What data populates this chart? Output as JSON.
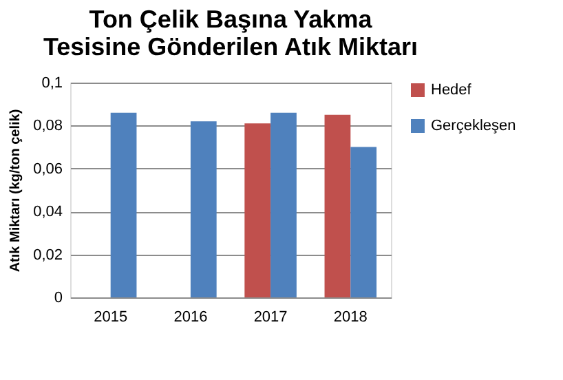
{
  "chart_data": {
    "type": "bar",
    "title": "Ton Çelik Başına Yakma Tesisine Gönderilen Atık Miktarı",
    "ylabel": "Atık Miktarı (kg/ton çelik)",
    "categories": [
      "2015",
      "2016",
      "2017",
      "2018"
    ],
    "series": [
      {
        "name": "Hedef",
        "color": "#c0504d",
        "values": [
          null,
          null,
          0.081,
          0.085
        ]
      },
      {
        "name": "Gerçekleşen",
        "color": "#4f81bd",
        "values": [
          0.086,
          0.082,
          0.086,
          0.07
        ]
      }
    ],
    "ylim": [
      0,
      0.1
    ],
    "yticks": [
      {
        "value": 0,
        "label": "0"
      },
      {
        "value": 0.02,
        "label": "0,02"
      },
      {
        "value": 0.04,
        "label": "0,04"
      },
      {
        "value": 0.06,
        "label": "0,06"
      },
      {
        "value": 0.08,
        "label": "0,08"
      },
      {
        "value": 0.1,
        "label": "0,1"
      }
    ],
    "grid": "y",
    "legend": "right"
  }
}
